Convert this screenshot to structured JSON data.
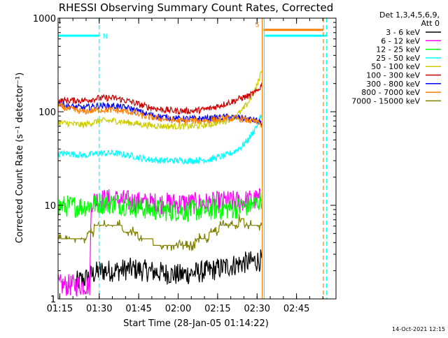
{
  "chart_data": {
    "type": "line",
    "title": "RHESSI Observing Summary Count Rates, Corrected",
    "xlabel": "Start Time (28-Jan-05 01:14:22)",
    "ylabel": "Corrected Count Rate (s⁻¹ detector⁻¹)",
    "y_scale": "log",
    "ylim": [
      1,
      1000
    ],
    "xlim": [
      1.2394,
      3.0
    ],
    "x_ticks": [
      {
        "x": 1.25,
        "label": "01:15"
      },
      {
        "x": 1.5,
        "label": "01:30"
      },
      {
        "x": 1.75,
        "label": "01:45"
      },
      {
        "x": 2.0,
        "label": "02:00"
      },
      {
        "x": 2.25,
        "label": "02:15"
      },
      {
        "x": 2.5,
        "label": "02:30"
      },
      {
        "x": 2.75,
        "label": "02:45"
      }
    ],
    "y_ticks": [
      {
        "y": 1,
        "label": "1"
      },
      {
        "y": 10,
        "label": "10"
      },
      {
        "y": 100,
        "label": "100"
      },
      {
        "y": 1000,
        "label": "1000"
      }
    ],
    "legend_header": [
      "Det 1,3,4,5,6,9,",
      "Att 0"
    ],
    "legend_placement": "right",
    "series": [
      {
        "name": "3 - 6 keV",
        "color": "#000000",
        "style": "noisy",
        "x": [
          1.35,
          1.4,
          1.5,
          1.6,
          1.7,
          1.8,
          1.9,
          2.0,
          2.1,
          2.2,
          2.3,
          2.4,
          2.53
        ],
        "values": [
          1.5,
          1.6,
          2.0,
          2.0,
          2.1,
          2.0,
          1.9,
          1.8,
          1.9,
          2.0,
          2.2,
          2.4,
          2.6
        ]
      },
      {
        "name": "6 - 12 keV",
        "color": "#ff00ff",
        "style": "noisy",
        "x": [
          1.24,
          1.3,
          1.35,
          1.4,
          1.44,
          1.45,
          1.5,
          1.6,
          1.7,
          1.8,
          1.9,
          2.0,
          2.1,
          2.2,
          2.3,
          2.4,
          2.5,
          2.53
        ],
        "values": [
          1.4,
          1.4,
          1.4,
          1.4,
          1.4,
          11,
          11.5,
          11.5,
          11,
          10.5,
          10.5,
          10.5,
          10.5,
          10.5,
          11,
          11,
          11.5,
          12
        ]
      },
      {
        "name": "12 - 25 keV",
        "color": "#00ff00",
        "style": "noisy",
        "x": [
          1.24,
          1.3,
          1.4,
          1.5,
          1.6,
          1.7,
          1.8,
          1.9,
          2.0,
          2.1,
          2.2,
          2.3,
          2.4,
          2.5,
          2.53
        ],
        "values": [
          9.8,
          9.8,
          9.8,
          10.5,
          10.5,
          10,
          9.2,
          8.8,
          8.8,
          8.8,
          9.0,
          9.2,
          9.5,
          10.5,
          12
        ]
      },
      {
        "name": "25 - 50 keV",
        "color": "#00ffff",
        "style": "noisy",
        "x": [
          1.24,
          1.3,
          1.4,
          1.5,
          1.6,
          1.7,
          1.8,
          1.9,
          2.0,
          2.1,
          2.2,
          2.3,
          2.35,
          2.4,
          2.45,
          2.5,
          2.53
        ],
        "values": [
          35,
          36,
          34,
          36,
          36,
          34,
          31,
          30,
          30,
          30,
          31,
          34,
          37,
          42,
          52,
          72,
          95
        ]
      },
      {
        "name": "50 - 100 keV",
        "color": "#cccc00",
        "style": "noisy",
        "x": [
          1.24,
          1.3,
          1.4,
          1.5,
          1.6,
          1.7,
          1.8,
          1.9,
          2.0,
          2.1,
          2.2,
          2.3,
          2.35,
          2.4,
          2.45,
          2.5,
          2.53
        ],
        "values": [
          76,
          75,
          72,
          80,
          80,
          76,
          72,
          70,
          70,
          70,
          73,
          80,
          87,
          100,
          130,
          190,
          280
        ]
      },
      {
        "name": "100 - 300 keV",
        "color": "#cc0000",
        "style": "noisy",
        "x": [
          1.24,
          1.3,
          1.4,
          1.5,
          1.6,
          1.7,
          1.8,
          1.9,
          2.0,
          2.1,
          2.2,
          2.3,
          2.35,
          2.4,
          2.45,
          2.5,
          2.53
        ],
        "values": [
          130,
          132,
          132,
          140,
          140,
          128,
          113,
          105,
          102,
          102,
          108,
          122,
          130,
          140,
          148,
          165,
          195
        ]
      },
      {
        "name": "300 - 800 keV",
        "color": "#0000ff",
        "style": "noisy",
        "x": [
          1.24,
          1.3,
          1.4,
          1.5,
          1.6,
          1.7,
          1.8,
          1.9,
          2.0,
          2.1,
          2.2,
          2.3,
          2.4,
          2.5,
          2.53
        ],
        "values": [
          125,
          115,
          110,
          116,
          115,
          108,
          94,
          88,
          84,
          84,
          85,
          88,
          86,
          80,
          75
        ]
      },
      {
        "name": "800 - 7000 keV",
        "color": "#ff8000",
        "style": "noisy",
        "x": [
          1.24,
          1.3,
          1.4,
          1.5,
          1.6,
          1.7,
          1.8,
          1.9,
          2.0,
          2.1,
          2.2,
          2.3,
          2.4,
          2.5,
          2.53
        ],
        "values": [
          115,
          108,
          100,
          105,
          104,
          99,
          88,
          84,
          80,
          80,
          81,
          85,
          84,
          77,
          72
        ]
      },
      {
        "name": "7000 - 15000 keV",
        "color": "#808000",
        "style": "steps",
        "x": [
          1.24,
          1.3,
          1.4,
          1.45,
          1.5,
          1.6,
          1.7,
          1.8,
          1.9,
          2.0,
          2.1,
          2.2,
          2.25,
          2.3,
          2.4,
          2.5,
          2.53
        ],
        "values": [
          4.5,
          4.5,
          4.5,
          5.3,
          6.2,
          6.0,
          5.2,
          4.3,
          3.7,
          3.7,
          4.0,
          4.8,
          5.5,
          6.3,
          6.7,
          6.3,
          6.0
        ]
      }
    ],
    "annotations": [
      {
        "text": "N",
        "color": "#00ffff",
        "x_start": 1.24,
        "x_end": 1.5,
        "value": 650
      },
      {
        "text": "S",
        "color": "#ff8000",
        "x_start": 2.54,
        "x_end": 2.92,
        "value": 750
      }
    ],
    "cyan_bar_2": {
      "x_start": 2.55,
      "x_end": 2.94,
      "value": 650
    },
    "vertical_lines": [
      {
        "x": 2.533,
        "color": "#ff8000",
        "style": "solid"
      },
      {
        "x": 2.545,
        "color": "#00ffff",
        "style": "solid"
      },
      {
        "x": 2.92,
        "color": "#ff8000",
        "style": "dashed"
      },
      {
        "x": 2.94,
        "color": "#00ffff",
        "style": "dashed"
      },
      {
        "x": 1.5,
        "color": "#00ffff",
        "style": "dashed"
      }
    ],
    "footer_timestamp": "14-Oct-2021 12:15"
  }
}
